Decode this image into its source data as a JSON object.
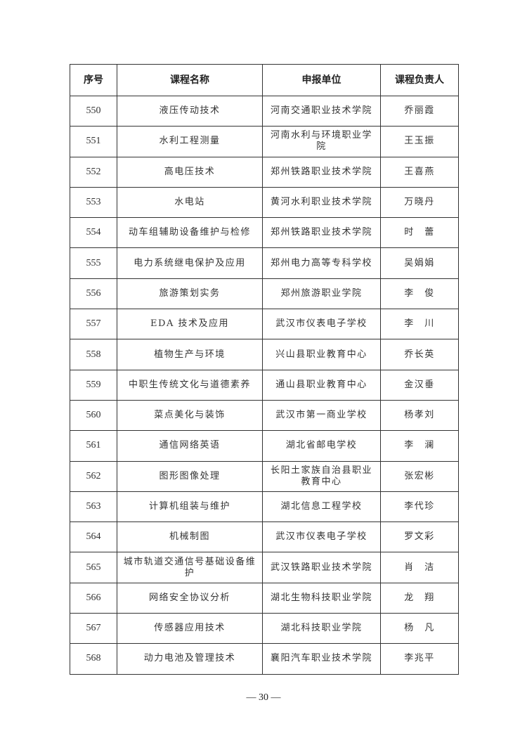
{
  "table": {
    "headers": [
      "序号",
      "课程名称",
      "申报单位",
      "课程负责人"
    ],
    "rows": [
      [
        "550",
        "液压传动技术",
        "河南交通职业技术学院",
        "乔丽霞"
      ],
      [
        "551",
        "水利工程测量",
        "河南水利与环境职业学院",
        "王玉振"
      ],
      [
        "552",
        "高电压技术",
        "郑州铁路职业技术学院",
        "王喜燕"
      ],
      [
        "553",
        "水电站",
        "黄河水利职业技术学院",
        "万晓丹"
      ],
      [
        "554",
        "动车组辅助设备维护与检修",
        "郑州铁路职业技术学院",
        "时　蕾"
      ],
      [
        "555",
        "电力系统继电保护及应用",
        "郑州电力高等专科学校",
        "吴娟娟"
      ],
      [
        "556",
        "旅游策划实务",
        "郑州旅游职业学院",
        "李　俊"
      ],
      [
        "557",
        "EDA 技术及应用",
        "武汉市仪表电子学校",
        "李　川"
      ],
      [
        "558",
        "植物生产与环境",
        "兴山县职业教育中心",
        "乔长英"
      ],
      [
        "559",
        "中职生传统文化与道德素养",
        "通山县职业教育中心",
        "金汉垂"
      ],
      [
        "560",
        "菜点美化与装饰",
        "武汉市第一商业学校",
        "杨孝刘"
      ],
      [
        "561",
        "通信网络英语",
        "湖北省邮电学校",
        "李　澜"
      ],
      [
        "562",
        "图形图像处理",
        "长阳土家族自治县职业教育中心",
        "张宏彬"
      ],
      [
        "563",
        "计算机组装与维护",
        "湖北信息工程学校",
        "李代珍"
      ],
      [
        "564",
        "机械制图",
        "武汉市仪表电子学校",
        "罗文彩"
      ],
      [
        "565",
        "城市轨道交通信号基础设备维护",
        "武汉铁路职业技术学院",
        "肖　洁"
      ],
      [
        "566",
        "网络安全协议分析",
        "湖北生物科技职业学院",
        "龙　翔"
      ],
      [
        "567",
        "传感器应用技术",
        "湖北科技职业学院",
        "杨　凡"
      ],
      [
        "568",
        "动力电池及管理技术",
        "襄阳汽车职业技术学院",
        "李兆平"
      ]
    ]
  },
  "footer": {
    "page_number": "— 30 —"
  }
}
